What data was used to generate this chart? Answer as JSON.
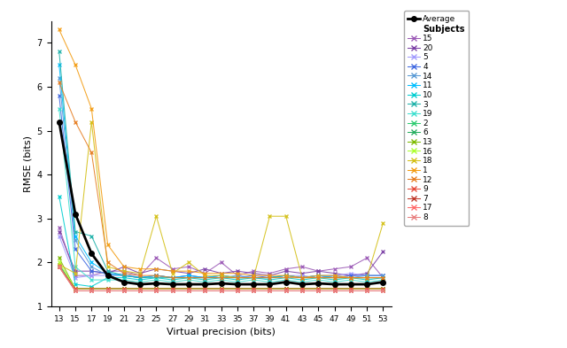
{
  "x_values": [
    13,
    15,
    17,
    19,
    21,
    23,
    25,
    27,
    29,
    31,
    33,
    35,
    37,
    39,
    41,
    43,
    45,
    47,
    49,
    51,
    53
  ],
  "xlabel": "Virtual precision (bits)",
  "ylabel": "RMSE (bits)",
  "ylim": [
    1.0,
    7.5
  ],
  "xlim": [
    12,
    54
  ],
  "average_label": "Average",
  "subjects_label": "Subjects",
  "subjects": [
    {
      "id": "15",
      "color": "#9b59b6"
    },
    {
      "id": "20",
      "color": "#7b3fa5"
    },
    {
      "id": "5",
      "color": "#a29bfe"
    },
    {
      "id": "4",
      "color": "#4169e1"
    },
    {
      "id": "14",
      "color": "#5b9bd5"
    },
    {
      "id": "11",
      "color": "#00bfff"
    },
    {
      "id": "10",
      "color": "#00ced1"
    },
    {
      "id": "3",
      "color": "#20b2aa"
    },
    {
      "id": "19",
      "color": "#40e0d0"
    },
    {
      "id": "2",
      "color": "#2ecc71"
    },
    {
      "id": "6",
      "color": "#27ae60"
    },
    {
      "id": "13",
      "color": "#7dbb00"
    },
    {
      "id": "16",
      "color": "#adff2f"
    },
    {
      "id": "18",
      "color": "#d4c017"
    },
    {
      "id": "1",
      "color": "#f39c12"
    },
    {
      "id": "12",
      "color": "#e67e22"
    },
    {
      "id": "9",
      "color": "#e74c3c"
    },
    {
      "id": "7",
      "color": "#c0392b"
    },
    {
      "id": "17",
      "color": "#ff6b6b"
    },
    {
      "id": "8",
      "color": "#e88080"
    }
  ],
  "series_data": {
    "average": [
      5.2,
      3.1,
      2.2,
      1.7,
      1.55,
      1.5,
      1.52,
      1.5,
      1.5,
      1.5,
      1.52,
      1.5,
      1.5,
      1.5,
      1.55,
      1.5,
      1.52,
      1.5,
      1.5,
      1.5,
      1.55
    ],
    "15": [
      2.8,
      1.7,
      1.7,
      1.8,
      1.8,
      1.7,
      2.1,
      1.85,
      1.9,
      1.75,
      2.0,
      1.7,
      1.8,
      1.75,
      1.85,
      1.9,
      1.8,
      1.85,
      1.9,
      2.1,
      1.65
    ],
    "20": [
      2.7,
      1.8,
      1.8,
      1.75,
      1.9,
      1.75,
      1.85,
      1.8,
      1.75,
      1.85,
      1.75,
      1.8,
      1.75,
      1.7,
      1.8,
      1.75,
      1.8,
      1.75,
      1.7,
      1.75,
      2.25
    ],
    "5": [
      2.6,
      1.65,
      1.7,
      1.7,
      1.75,
      1.65,
      1.7,
      1.65,
      1.7,
      1.65,
      1.7,
      1.65,
      1.65,
      1.65,
      1.7,
      1.7,
      1.65,
      1.7,
      1.75,
      1.7,
      1.7
    ],
    "4": [
      5.8,
      2.3,
      1.8,
      1.75,
      1.7,
      1.65,
      1.7,
      1.65,
      1.7,
      1.65,
      1.7,
      1.65,
      1.7,
      1.65,
      1.7,
      1.65,
      1.7,
      1.65,
      1.7,
      1.7,
      1.7
    ],
    "14": [
      6.2,
      2.5,
      1.9,
      1.7,
      1.7,
      1.65,
      1.7,
      1.65,
      1.65,
      1.65,
      1.65,
      1.7,
      1.65,
      1.65,
      1.7,
      1.65,
      1.7,
      1.7,
      1.65,
      1.7,
      1.7
    ],
    "11": [
      6.5,
      2.6,
      2.0,
      1.75,
      1.7,
      1.65,
      1.7,
      1.65,
      1.7,
      1.65,
      1.7,
      1.65,
      1.65,
      1.65,
      1.7,
      1.65,
      1.7,
      1.65,
      1.65,
      1.65,
      1.65
    ],
    "10": [
      3.5,
      1.5,
      1.45,
      1.65,
      1.65,
      1.6,
      1.65,
      1.6,
      1.65,
      1.6,
      1.65,
      1.6,
      1.65,
      1.6,
      1.65,
      1.6,
      1.65,
      1.6,
      1.65,
      1.6,
      1.65
    ],
    "3": [
      6.8,
      2.7,
      2.6,
      1.8,
      1.7,
      1.65,
      1.65,
      1.65,
      1.65,
      1.65,
      1.65,
      1.65,
      1.65,
      1.65,
      1.7,
      1.65,
      1.65,
      1.65,
      1.65,
      1.65,
      1.65
    ],
    "19": [
      5.5,
      1.9,
      1.6,
      1.6,
      1.6,
      1.55,
      1.6,
      1.55,
      1.6,
      1.55,
      1.6,
      1.55,
      1.6,
      1.55,
      1.6,
      1.55,
      1.6,
      1.55,
      1.6,
      1.55,
      1.6
    ],
    "2": [
      1.9,
      1.4,
      1.4,
      1.4,
      1.4,
      1.4,
      1.4,
      1.4,
      1.4,
      1.4,
      1.4,
      1.4,
      1.4,
      1.4,
      1.4,
      1.4,
      1.4,
      1.4,
      1.4,
      1.4,
      1.4
    ],
    "6": [
      1.95,
      1.4,
      1.4,
      1.4,
      1.4,
      1.4,
      1.4,
      1.4,
      1.4,
      1.4,
      1.4,
      1.4,
      1.4,
      1.4,
      1.4,
      1.4,
      1.4,
      1.4,
      1.4,
      1.4,
      1.4
    ],
    "13": [
      2.1,
      1.4,
      1.4,
      1.4,
      1.4,
      1.4,
      1.4,
      1.4,
      1.4,
      1.4,
      1.4,
      1.4,
      1.4,
      1.4,
      1.4,
      1.4,
      1.4,
      1.4,
      1.4,
      1.4,
      1.4
    ],
    "16": [
      2.0,
      1.4,
      1.4,
      1.4,
      1.4,
      1.4,
      1.4,
      1.4,
      1.4,
      1.4,
      1.4,
      1.4,
      1.4,
      1.4,
      1.4,
      1.4,
      1.4,
      1.4,
      1.4,
      1.4,
      1.4
    ],
    "18": [
      1.95,
      1.75,
      5.2,
      1.9,
      1.8,
      1.75,
      3.05,
      1.75,
      2.0,
      1.7,
      1.7,
      1.65,
      1.65,
      3.05,
      3.05,
      1.65,
      1.65,
      1.65,
      1.65,
      1.65,
      2.9
    ],
    "1": [
      7.3,
      6.5,
      5.5,
      2.4,
      1.9,
      1.85,
      1.85,
      1.8,
      1.8,
      1.75,
      1.75,
      1.75,
      1.7,
      1.7,
      1.7,
      1.65,
      1.7,
      1.7,
      1.65,
      1.65,
      1.65
    ],
    "12": [
      6.1,
      5.2,
      4.5,
      2.0,
      1.75,
      1.7,
      1.7,
      1.65,
      1.65,
      1.65,
      1.65,
      1.65,
      1.65,
      1.65,
      1.65,
      1.65,
      1.65,
      1.65,
      1.65,
      1.65,
      1.65
    ],
    "9": [
      1.9,
      1.4,
      1.4,
      1.4,
      1.4,
      1.4,
      1.4,
      1.4,
      1.4,
      1.4,
      1.4,
      1.4,
      1.4,
      1.4,
      1.4,
      1.4,
      1.4,
      1.4,
      1.4,
      1.4,
      1.4
    ],
    "7": [
      1.9,
      1.35,
      1.35,
      1.35,
      1.35,
      1.35,
      1.35,
      1.35,
      1.35,
      1.35,
      1.35,
      1.35,
      1.35,
      1.35,
      1.35,
      1.35,
      1.35,
      1.35,
      1.35,
      1.35,
      1.35
    ],
    "17": [
      1.9,
      1.35,
      1.35,
      1.35,
      1.35,
      1.35,
      1.35,
      1.35,
      1.35,
      1.35,
      1.35,
      1.35,
      1.35,
      1.35,
      1.35,
      1.35,
      1.35,
      1.35,
      1.35,
      1.35,
      1.35
    ],
    "8": [
      1.9,
      1.35,
      1.35,
      1.35,
      1.35,
      1.35,
      1.35,
      1.35,
      1.35,
      1.35,
      1.35,
      1.35,
      1.35,
      1.35,
      1.35,
      1.35,
      1.35,
      1.35,
      1.35,
      1.35,
      1.35
    ]
  },
  "figsize": [
    6.4,
    3.93
  ],
  "dpi": 100
}
